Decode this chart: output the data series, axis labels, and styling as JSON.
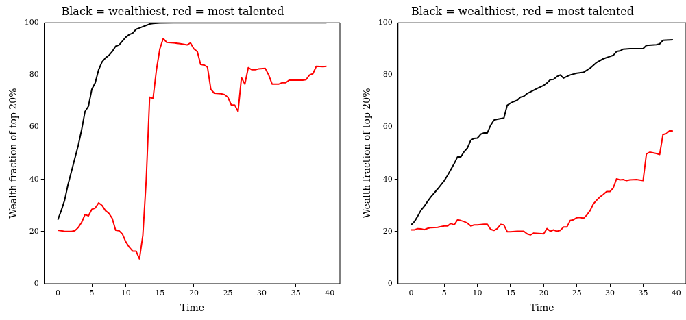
{
  "chart_data": [
    {
      "type": "line",
      "title": "Black = wealthiest, red = most talented",
      "xlabel": "Time",
      "ylabel": "Wealth fraction of top 20%",
      "xlim": [
        -1.975,
        41.475
      ],
      "xticks": [
        0,
        5,
        10,
        15,
        20,
        25,
        30,
        35,
        40
      ],
      "ylim": [
        0,
        100
      ],
      "yticks": [
        0,
        20,
        40,
        60,
        80,
        100
      ],
      "grid": false,
      "legend": false,
      "marker": "none",
      "line_style": "solid",
      "series": [
        {
          "color": "#000000",
          "x": [
            0,
            0.5,
            1,
            1.5,
            2,
            2.5,
            3,
            3.5,
            4,
            4.5,
            5,
            5.5,
            6,
            6.5,
            7,
            7.5,
            8,
            8.5,
            9,
            9.5,
            10,
            10.5,
            11,
            11.5,
            12,
            12.5,
            13,
            13.5,
            14,
            15,
            17,
            39.5
          ],
          "values": [
            24.5,
            28,
            32,
            38,
            43,
            48,
            53,
            59,
            66,
            68,
            74.5,
            77,
            82,
            85,
            86.5,
            87.5,
            89,
            91,
            91.5,
            93,
            94.5,
            95.5,
            96,
            97.5,
            98,
            98.5,
            99,
            99.5,
            99.7,
            99.9,
            100,
            100
          ]
        },
        {
          "color": "#ff0000",
          "x": [
            0,
            0.5,
            1,
            2,
            2.5,
            3,
            3.5,
            4,
            4.5,
            5,
            5.5,
            6,
            6.5,
            7,
            7.5,
            8,
            8.5,
            9,
            9.5,
            10,
            10.5,
            11,
            11.5,
            12,
            12.5,
            13,
            13.5,
            14,
            14.5,
            15,
            15.5,
            16,
            17,
            18,
            19,
            19.5,
            20,
            20.5,
            21,
            21.5,
            22,
            22.5,
            23,
            24,
            24.5,
            25,
            25.5,
            26,
            26.5,
            27,
            27.5,
            28,
            28.5,
            29,
            29.5,
            30.5,
            31,
            31.5,
            32.5,
            33,
            33.5,
            34,
            36,
            36.5,
            37,
            37.5,
            38,
            39,
            39.5
          ],
          "values": [
            20.5,
            20.3,
            20,
            20,
            20.3,
            21.5,
            23.5,
            26.5,
            26,
            28.5,
            29,
            31,
            30,
            28,
            27,
            25,
            20.5,
            20.3,
            19,
            16,
            14,
            12.5,
            12.5,
            9.5,
            18.5,
            40,
            71.5,
            71,
            82,
            90,
            94,
            92.5,
            92.3,
            92,
            91.5,
            92.3,
            90,
            89,
            84,
            83.8,
            83,
            74.5,
            73,
            72.8,
            72.5,
            71.5,
            68.5,
            68.5,
            66,
            79,
            76.5,
            82.8,
            82,
            82,
            82.3,
            82.5,
            80,
            76.5,
            76.5,
            77,
            77,
            78,
            78,
            78.2,
            80,
            80.5,
            83.3,
            83.2,
            83.3
          ]
        }
      ]
    },
    {
      "type": "line",
      "title": "Black = wealthiest, red = most talented",
      "xlabel": "Time",
      "ylabel": "Wealth fraction of top 20%",
      "xlim": [
        -1.975,
        41.475
      ],
      "xticks": [
        0,
        5,
        10,
        15,
        20,
        25,
        30,
        35,
        40
      ],
      "ylim": [
        0,
        100
      ],
      "yticks": [
        0,
        20,
        40,
        60,
        80,
        100
      ],
      "grid": false,
      "legend": false,
      "marker": "none",
      "line_style": "solid",
      "series": [
        {
          "color": "#000000",
          "x": [
            0,
            0.5,
            1,
            1.5,
            2,
            2.5,
            3,
            3.5,
            4,
            5,
            5.5,
            6,
            6.5,
            7,
            7.5,
            8,
            8.5,
            9,
            9.5,
            10,
            10.5,
            11,
            11.5,
            12,
            12.5,
            13,
            14,
            14.5,
            15,
            15.5,
            16,
            16.5,
            17,
            17.5,
            18,
            19,
            20,
            20.5,
            21,
            21.5,
            22,
            22.5,
            23,
            24,
            25,
            26,
            27,
            28,
            29,
            30,
            30.5,
            31,
            31.5,
            32,
            33,
            35,
            35.5,
            37,
            37.5,
            38,
            39.5
          ],
          "values": [
            22.5,
            23.8,
            25.9,
            28.2,
            29.7,
            31.6,
            33.3,
            34.8,
            36.3,
            39.5,
            41.5,
            43.8,
            46,
            48.6,
            48.6,
            50.6,
            52,
            55,
            55.7,
            55.8,
            57.3,
            57.8,
            57.8,
            60.7,
            62.7,
            63,
            63.5,
            68.4,
            69.2,
            69.8,
            70.3,
            71.5,
            71.8,
            72.9,
            73.5,
            74.8,
            76,
            76.9,
            78.2,
            78.3,
            79.4,
            80,
            78.8,
            80,
            80.7,
            81,
            82.6,
            84.8,
            86.2,
            87.1,
            87.5,
            89,
            89.2,
            89.9,
            90.1,
            90.1,
            91.3,
            91.6,
            91.9,
            93.3,
            93.5
          ]
        },
        {
          "color": "#ff0000",
          "x": [
            0,
            0.5,
            1,
            1.5,
            2,
            2.5,
            3,
            4,
            5,
            5.5,
            6,
            6.5,
            7,
            7.5,
            8,
            8.5,
            9,
            9.5,
            10,
            11,
            11.5,
            12,
            12.5,
            13,
            13.5,
            14,
            14.5,
            15,
            16,
            17,
            17.5,
            18,
            18.5,
            20,
            20.5,
            21,
            21.5,
            22,
            22.5,
            23,
            23.5,
            24,
            24.5,
            25,
            25.5,
            26,
            26.5,
            27,
            27.5,
            28,
            28.5,
            29,
            29.5,
            30,
            30.5,
            31,
            31.5,
            32,
            32.5,
            33,
            34,
            35,
            35.5,
            36,
            37,
            37.5,
            38,
            38.5,
            39,
            39.5
          ],
          "values": [
            20.6,
            20.6,
            21.1,
            21,
            20.7,
            21.2,
            21.5,
            21.6,
            22.1,
            22.1,
            23.1,
            22.5,
            24.5,
            24.2,
            23.8,
            23.2,
            22.1,
            22.5,
            22.5,
            22.8,
            22.8,
            20.8,
            20.4,
            21.1,
            22.7,
            22.5,
            19.9,
            19.9,
            20.1,
            20.1,
            19.1,
            18.7,
            19.4,
            19.1,
            21.1,
            20.1,
            20.6,
            20.1,
            20.4,
            21.7,
            21.7,
            24.2,
            24.5,
            25.3,
            25.4,
            25,
            26.3,
            28,
            30.6,
            32,
            33.3,
            34.2,
            35.3,
            35.3,
            36.7,
            40.2,
            39.8,
            39.9,
            39.5,
            39.8,
            39.9,
            39.5,
            49.7,
            50.4,
            49.9,
            49.5,
            57.2,
            57.5,
            58.6,
            58.5
          ]
        }
      ]
    }
  ]
}
